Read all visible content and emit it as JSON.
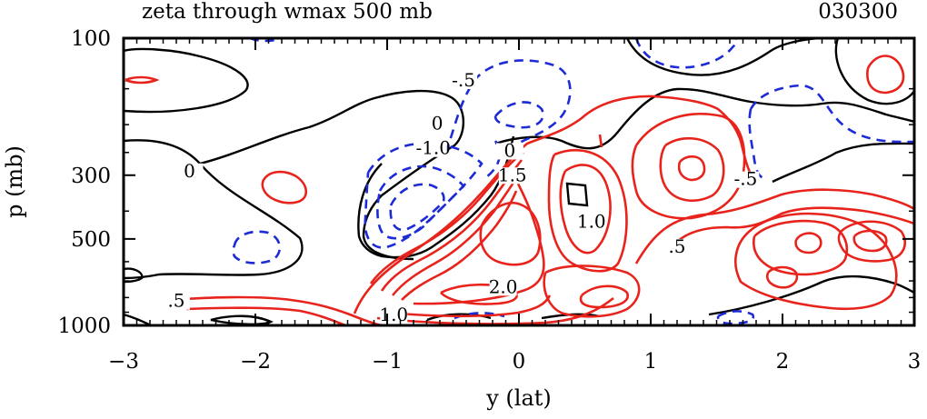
{
  "chart_data": {
    "type": "contour",
    "title": "zeta through wmax 500 mb",
    "timestamp": "030300",
    "xlabel": "y (lat)",
    "ylabel": "p (mb)",
    "xlim": [
      -3,
      3
    ],
    "ylim": [
      1000,
      100
    ],
    "y_scale": "log",
    "x_ticks": [
      {
        "value": -3,
        "label": "−3"
      },
      {
        "value": -2,
        "label": "−2"
      },
      {
        "value": -1,
        "label": "−1"
      },
      {
        "value": 0,
        "label": "0"
      },
      {
        "value": 1,
        "label": "1"
      },
      {
        "value": 2,
        "label": "2"
      },
      {
        "value": 3,
        "label": "3"
      }
    ],
    "y_ticks": [
      {
        "value": 100,
        "label": "100"
      },
      {
        "value": 300,
        "label": "300"
      },
      {
        "value": 500,
        "label": "500"
      },
      {
        "value": 1000,
        "label": "1000"
      }
    ],
    "colors": {
      "positive": "#e8231c",
      "negative": "#1c2bd6",
      "zero": "#000000"
    },
    "series": [
      {
        "name": "positive",
        "style": "solid"
      },
      {
        "name": "zero",
        "style": "solid"
      },
      {
        "name": "negative",
        "style": "dashed"
      }
    ],
    "contour_labels": [
      {
        "text": "0",
        "x": -2.5,
        "p": 300
      },
      {
        "text": ".5",
        "x": -2.6,
        "p": 850
      },
      {
        "text": "1.0",
        "x": -0.95,
        "p": 950
      },
      {
        "text": "-1.0",
        "x": -0.65,
        "p": 250
      },
      {
        "text": "-.5",
        "x": -0.42,
        "p": 145
      },
      {
        "text": "0",
        "x": -0.62,
        "p": 205
      },
      {
        "text": "0",
        "x": -0.07,
        "p": 255
      },
      {
        "text": "1.5",
        "x": -0.05,
        "p": 310
      },
      {
        "text": "2.0",
        "x": -0.12,
        "p": 760
      },
      {
        "text": "1.0",
        "x": 0.55,
        "p": 450
      },
      {
        "text": ".5",
        "x": 1.2,
        "p": 550
      },
      {
        "text": "-.5",
        "x": 1.72,
        "p": 320
      }
    ],
    "grid": false
  }
}
